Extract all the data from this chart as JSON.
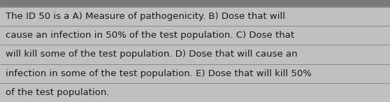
{
  "lines": [
    "The ID 50 is a A) Measure of pathogenicity. B) Dose that will",
    "cause an infection in 50% of the test population. C) Dose that",
    "will kill some of the test population. D) Dose that will cause an",
    "infection in some of the test population. E) Dose that will kill 50%",
    "of the test population."
  ],
  "bg_color": "#8c8c8c",
  "row_bg_color": "#c0c0c0",
  "text_color": "#1a1a1a",
  "line_color": "#888888",
  "top_bar_color": "#7a7a7a",
  "font_size": 9.5,
  "fig_width": 5.58,
  "fig_height": 1.46,
  "dpi": 100
}
